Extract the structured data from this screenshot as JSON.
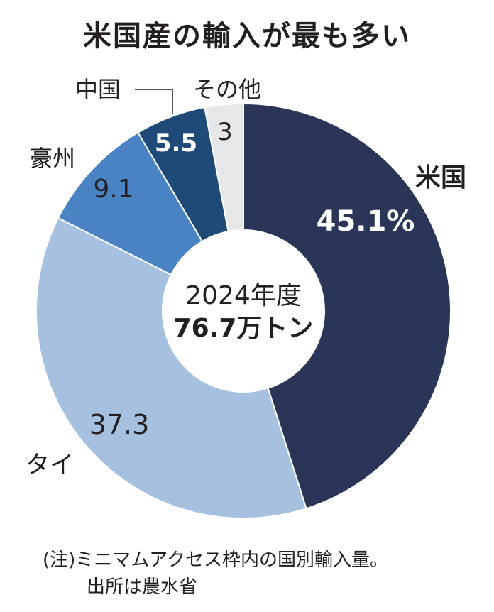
{
  "chart_data": {
    "type": "pie",
    "title": "米国産の輸入が最も多い",
    "center_label": {
      "line1": "2024年度",
      "line2": "76.7万トン"
    },
    "slices": [
      {
        "name": "米国",
        "value": 45.1,
        "label": "45.1%",
        "color": "#2b3558"
      },
      {
        "name": "タイ",
        "value": 37.3,
        "label": "37.3",
        "color": "#a6c1e0"
      },
      {
        "name": "豪州",
        "value": 9.1,
        "label": "9.1",
        "color": "#4a83c4"
      },
      {
        "name": "中国",
        "value": 5.5,
        "label": "5.5",
        "color": "#1f4a78"
      },
      {
        "name": "その他",
        "value": 3,
        "label": "3",
        "color": "#e6e7e8"
      }
    ]
  },
  "notes": {
    "line1": "(注)ミニマムアクセス枠内の国別輸入量。",
    "line2": "出所は農水省"
  }
}
